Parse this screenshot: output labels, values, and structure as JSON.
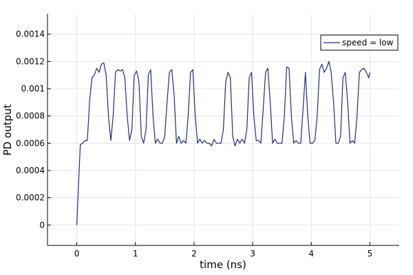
{
  "chart_data": {
    "type": "line",
    "xlabel": "time (ns)",
    "ylabel": "PD output",
    "xlim": [
      -0.5,
      5.5
    ],
    "ylim": [
      -0.00015,
      0.00155
    ],
    "xticks": [
      0,
      1,
      2,
      3,
      4,
      5
    ],
    "xtick_labels": [
      "0",
      "1",
      "2",
      "3",
      "4",
      "5"
    ],
    "yticks": [
      0,
      0.0002,
      0.0004,
      0.0006,
      0.0008,
      0.001,
      0.0012,
      0.0014
    ],
    "ytick_labels": [
      "0",
      "0.0002",
      "0.0004",
      "0.0006",
      "0.0008",
      "0.001",
      "0.0012",
      "0.0014"
    ],
    "grid": true,
    "legend_position": "top-right",
    "series": [
      {
        "name": "speed = low",
        "color": "#1f2a7a",
        "x": [
          0.0,
          0.03,
          0.06,
          0.1,
          0.14,
          0.18,
          0.22,
          0.26,
          0.3,
          0.34,
          0.38,
          0.42,
          0.46,
          0.5,
          0.54,
          0.58,
          0.62,
          0.66,
          0.7,
          0.74,
          0.78,
          0.82,
          0.86,
          0.9,
          0.94,
          0.98,
          1.02,
          1.06,
          1.1,
          1.14,
          1.18,
          1.22,
          1.26,
          1.3,
          1.34,
          1.38,
          1.42,
          1.46,
          1.5,
          1.54,
          1.58,
          1.62,
          1.66,
          1.7,
          1.74,
          1.78,
          1.82,
          1.86,
          1.9,
          1.94,
          1.98,
          2.02,
          2.06,
          2.1,
          2.14,
          2.18,
          2.22,
          2.26,
          2.3,
          2.34,
          2.38,
          2.42,
          2.46,
          2.5,
          2.54,
          2.58,
          2.62,
          2.66,
          2.7,
          2.74,
          2.78,
          2.82,
          2.86,
          2.9,
          2.94,
          2.98,
          3.02,
          3.06,
          3.1,
          3.14,
          3.18,
          3.22,
          3.26,
          3.3,
          3.34,
          3.38,
          3.42,
          3.46,
          3.5,
          3.54,
          3.58,
          3.62,
          3.66,
          3.7,
          3.74,
          3.78,
          3.82,
          3.86,
          3.9,
          3.94,
          3.98,
          4.02,
          4.06,
          4.1,
          4.14,
          4.18,
          4.22,
          4.26,
          4.3,
          4.34,
          4.38,
          4.42,
          4.46,
          4.5,
          4.54,
          4.58,
          4.62,
          4.66,
          4.7,
          4.74,
          4.78,
          4.82,
          4.86,
          4.9,
          4.94,
          4.98,
          5.0
        ],
        "y": [
          0.0,
          0.0003,
          0.00059,
          0.0006,
          0.00062,
          0.00062,
          0.00092,
          0.00108,
          0.0011,
          0.00115,
          0.00112,
          0.00118,
          0.00119,
          0.0011,
          0.0008,
          0.00062,
          0.0008,
          0.00112,
          0.00114,
          0.00113,
          0.00114,
          0.00108,
          0.0008,
          0.00062,
          0.0007,
          0.0011,
          0.00113,
          0.00105,
          0.00065,
          0.0006,
          0.0007,
          0.0011,
          0.00114,
          0.0008,
          0.0006,
          0.00063,
          0.0006,
          0.0006,
          0.00065,
          0.0009,
          0.00112,
          0.00114,
          0.00095,
          0.0006,
          0.00065,
          0.0006,
          0.00062,
          0.0006,
          0.0008,
          0.00112,
          0.00114,
          0.0008,
          0.0006,
          0.00063,
          0.0006,
          0.00062,
          0.0006,
          0.0006,
          0.00058,
          0.00063,
          0.0006,
          0.0006,
          0.0006,
          0.0007,
          0.00105,
          0.00112,
          0.00108,
          0.00065,
          0.00058,
          0.00063,
          0.0006,
          0.00063,
          0.0006,
          0.0007,
          0.00108,
          0.00112,
          0.0008,
          0.00062,
          0.00062,
          0.0006,
          0.00085,
          0.00112,
          0.00115,
          0.0009,
          0.0006,
          0.00063,
          0.0006,
          0.0006,
          0.0006,
          0.0008,
          0.00116,
          0.00115,
          0.0008,
          0.0006,
          0.00062,
          0.0006,
          0.0006,
          0.00085,
          0.00112,
          0.0008,
          0.0006,
          0.0006,
          0.00062,
          0.0008,
          0.00114,
          0.00118,
          0.00112,
          0.00115,
          0.0012,
          0.00112,
          0.0009,
          0.0006,
          0.0006,
          0.00065,
          0.00108,
          0.00112,
          0.0009,
          0.0006,
          0.00062,
          0.0006,
          0.0008,
          0.00112,
          0.00114,
          0.00115,
          0.00112,
          0.00108,
          0.00112
        ]
      }
    ]
  }
}
